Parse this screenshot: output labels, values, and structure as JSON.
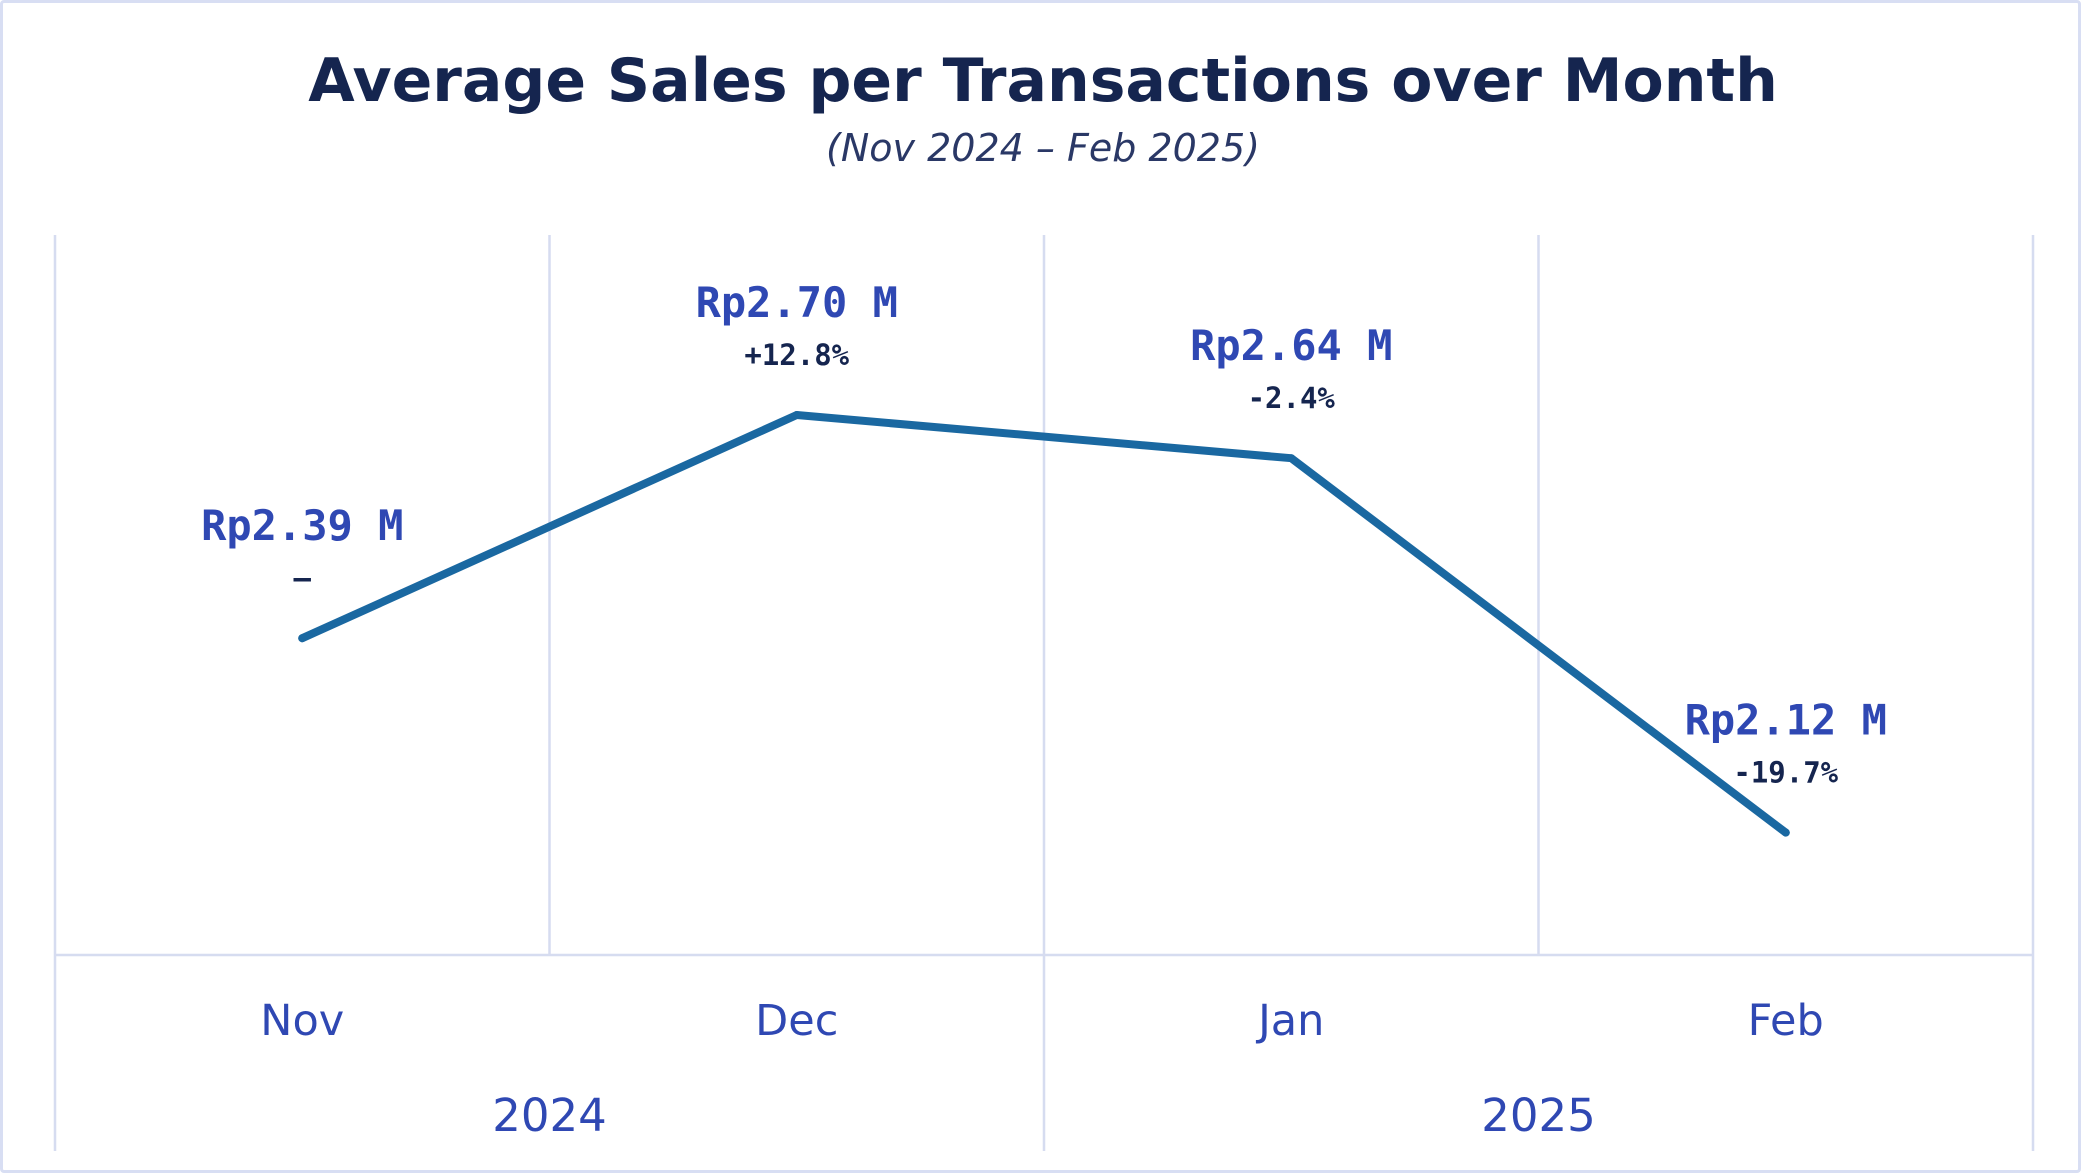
{
  "chart_data": {
    "type": "line",
    "title": "Average Sales per Transactions over Month",
    "subtitle": "(Nov 2024 – Feb 2025)",
    "categories": [
      "Nov",
      "Dec",
      "Jan",
      "Feb"
    ],
    "groups": [
      {
        "label": "2024",
        "categories": [
          "Nov",
          "Dec"
        ]
      },
      {
        "label": "2025",
        "categories": [
          "Jan",
          "Feb"
        ]
      }
    ],
    "values": [
      2.39,
      2.7,
      2.64,
      2.12
    ],
    "value_labels": [
      "Rp2.39 M",
      "Rp2.70 M",
      "Rp2.64 M",
      "Rp2.12 M"
    ],
    "change_labels": [
      "–",
      "+12.8%",
      "-2.4%",
      "-19.7%"
    ],
    "ylim": [
      1.95,
      2.95
    ],
    "xlabel": "",
    "ylabel": "",
    "grid": true,
    "line_color": "#1a68a1",
    "label_color": "#2f48b3",
    "title_color": "#15254f"
  }
}
